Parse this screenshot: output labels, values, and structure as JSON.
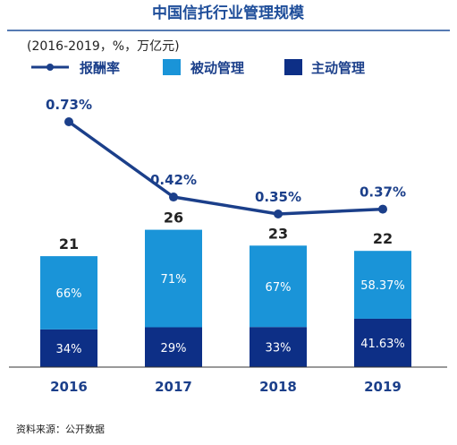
{
  "title": "中国信托行业管理规模",
  "subtitle": "(2016-2019，%，万亿元)",
  "source": "资料来源：公开数据",
  "colors": {
    "title": "#1f4e9a",
    "rule": "#1f4e9a",
    "passive": "#1a94d8",
    "active": "#0d2f86",
    "line": "#1b3f8a",
    "label": "#1b3f8a",
    "axis": "#333333",
    "text_dark": "#222222"
  },
  "chart_data": {
    "type": "bar",
    "categories": [
      "2016",
      "2017",
      "2018",
      "2019"
    ],
    "totals": [
      21,
      26,
      23,
      22
    ],
    "series": [
      {
        "name": "主动管理",
        "values": [
          34,
          29,
          33,
          41.63
        ],
        "labels": [
          "34%",
          "29%",
          "33%",
          "41.63%"
        ]
      },
      {
        "name": "被动管理",
        "values": [
          66,
          71,
          67,
          58.37
        ],
        "labels": [
          "66%",
          "71%",
          "67%",
          "58.37%"
        ]
      }
    ],
    "line": {
      "name": "报酬率",
      "values": [
        0.73,
        0.42,
        0.35,
        0.37
      ],
      "labels": [
        "0.73%",
        "0.42%",
        "0.35%",
        "0.37%"
      ]
    },
    "legend": [
      "报酬率",
      "被动管理",
      "主动管理"
    ],
    "legend_position": "top-left"
  }
}
